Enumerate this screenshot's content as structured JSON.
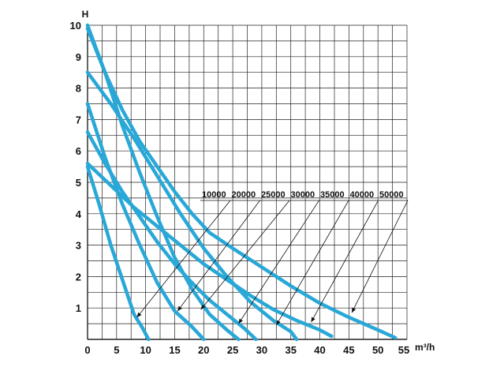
{
  "chart_data": {
    "type": "line",
    "ylabel": "H",
    "xlabel": "m³/h",
    "xlim": [
      0,
      55
    ],
    "ylim": [
      0,
      10
    ],
    "x_ticks": [
      "0",
      "5",
      "10",
      "15",
      "20",
      "25",
      "30",
      "35",
      "40",
      "45",
      "50",
      "55"
    ],
    "y_ticks": [
      "1",
      "2",
      "3",
      "4",
      "5",
      "6",
      "7",
      "8",
      "9",
      "10"
    ],
    "grid": true,
    "line_color": "#29A8D8",
    "series": [
      {
        "name": "10000",
        "points": [
          [
            0,
            5.5
          ],
          [
            2,
            4.3
          ],
          [
            4,
            3.0
          ],
          [
            6,
            1.9
          ],
          [
            8,
            0.8
          ],
          [
            9.5,
            0.35
          ],
          [
            10.5,
            0
          ]
        ],
        "pointer_to": [
          8.5,
          0.7
        ]
      },
      {
        "name": "20000",
        "points": [
          [
            0,
            7.5
          ],
          [
            3,
            5.8
          ],
          [
            6,
            4.3
          ],
          [
            9,
            3.0
          ],
          [
            12,
            1.8
          ],
          [
            15,
            0.9
          ],
          [
            18,
            0.4
          ],
          [
            20,
            0
          ]
        ],
        "pointer_to": [
          15.5,
          0.9
        ]
      },
      {
        "name": "25000",
        "points": [
          [
            0,
            10.0
          ],
          [
            3,
            8.5
          ],
          [
            6,
            6.8
          ],
          [
            9,
            5.3
          ],
          [
            12,
            3.9
          ],
          [
            15,
            2.6
          ],
          [
            18,
            1.6
          ],
          [
            21,
            0.8
          ],
          [
            24,
            0.3
          ],
          [
            26,
            0
          ]
        ],
        "pointer_to": [
          19.5,
          0.95
        ]
      },
      {
        "name": "30000",
        "points": [
          [
            0,
            6.6
          ],
          [
            3,
            5.6
          ],
          [
            6,
            4.7
          ],
          [
            9,
            3.9
          ],
          [
            12,
            3.1
          ],
          [
            15,
            2.4
          ],
          [
            18,
            1.8
          ],
          [
            21,
            1.25
          ],
          [
            24,
            0.8
          ],
          [
            27,
            0.35
          ],
          [
            29,
            0
          ]
        ],
        "pointer_to": [
          26,
          0.5
        ]
      },
      {
        "name": "35000",
        "points": [
          [
            0,
            8.5
          ],
          [
            4,
            7.5
          ],
          [
            8,
            6.4
          ],
          [
            12,
            5.2
          ],
          [
            16,
            4.0
          ],
          [
            20,
            2.9
          ],
          [
            24,
            2.0
          ],
          [
            28,
            1.2
          ],
          [
            32,
            0.6
          ],
          [
            35,
            0.25
          ],
          [
            36,
            0
          ]
        ],
        "pointer_to": [
          32.5,
          0.45
        ]
      },
      {
        "name": "40000",
        "points": [
          [
            0,
            5.6
          ],
          [
            4,
            4.9
          ],
          [
            8,
            4.2
          ],
          [
            12,
            3.6
          ],
          [
            16,
            3.0
          ],
          [
            20,
            2.4
          ],
          [
            24,
            1.9
          ],
          [
            28,
            1.4
          ],
          [
            32,
            0.95
          ],
          [
            36,
            0.6
          ],
          [
            40,
            0.3
          ],
          [
            42,
            0.1
          ]
        ],
        "pointer_to": [
          38.5,
          0.55
        ]
      },
      {
        "name": "50000",
        "points": [
          [
            0,
            9.9
          ],
          [
            3,
            8.5
          ],
          [
            6,
            7.3
          ],
          [
            9,
            6.3
          ],
          [
            12,
            5.5
          ],
          [
            15,
            4.7
          ],
          [
            18,
            4.0
          ],
          [
            21,
            3.4
          ],
          [
            25,
            2.9
          ],
          [
            30,
            2.3
          ],
          [
            35,
            1.7
          ],
          [
            40,
            1.15
          ],
          [
            45,
            0.7
          ],
          [
            50,
            0.3
          ],
          [
            53,
            0.05
          ]
        ],
        "pointer_to": [
          45.5,
          0.85
        ]
      }
    ]
  }
}
